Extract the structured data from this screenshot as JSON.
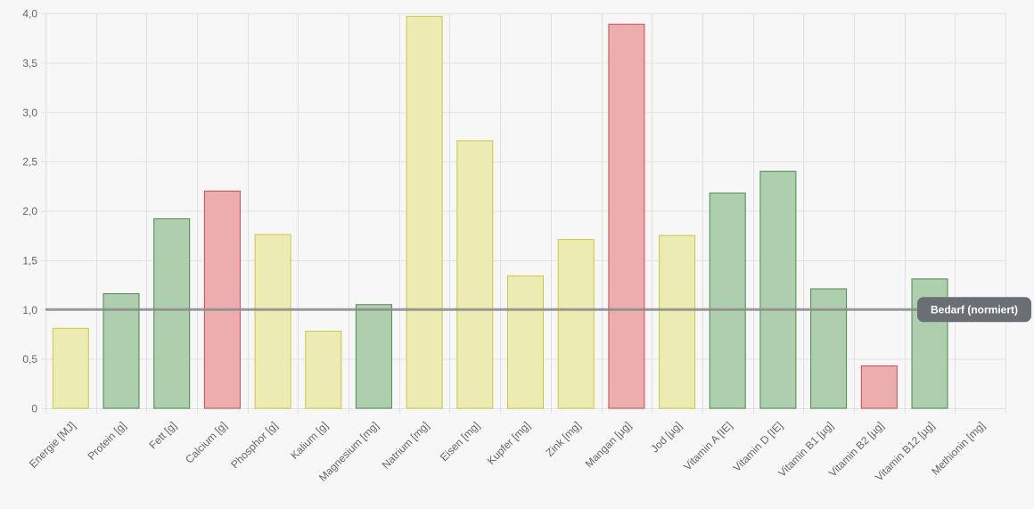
{
  "chart_data": {
    "type": "bar",
    "categories": [
      "Energie [MJ]",
      "Protein [g]",
      "Fett [g]",
      "Calcium [g]",
      "Phosphor [g]",
      "Kalium [g]",
      "Magnesium [mg]",
      "Natrium [mg]",
      "Eisen [mg]",
      "Kupfer [mg]",
      "Zink [mg]",
      "Mangan [µg]",
      "Jod [µg]",
      "Vitamin A [IE]",
      "Vitamin D [IE]",
      "Vitamin B1 [µg]",
      "Vitamin B2 [µg]",
      "Vitamin B12 [µg]",
      "Methionin [mg]"
    ],
    "values": [
      0.81,
      1.16,
      1.92,
      2.2,
      1.76,
      0.78,
      1.05,
      3.97,
      2.71,
      1.34,
      1.71,
      3.89,
      1.75,
      2.18,
      2.4,
      1.21,
      0.43,
      1.31,
      null
    ],
    "status": [
      "yellow",
      "green",
      "green",
      "red",
      "yellow",
      "yellow",
      "green",
      "yellow",
      "yellow",
      "yellow",
      "yellow",
      "red",
      "yellow",
      "green",
      "green",
      "green",
      "red",
      "green",
      "none"
    ],
    "y_ticks": [
      "0",
      "0,5",
      "1,0",
      "1,5",
      "2,0",
      "2,5",
      "3,0",
      "3,5",
      "4,0"
    ],
    "ylim": [
      0,
      4
    ],
    "grid": true,
    "reference_line": {
      "value": 1.0,
      "label": "Bedarf (normiert)"
    },
    "title": "",
    "xlabel": "",
    "ylabel": ""
  },
  "colors": {
    "yellow": {
      "fill": "#ecebb3",
      "stroke": "#cbc83c"
    },
    "green": {
      "fill": "#aecfae",
      "stroke": "#4a8a4a"
    },
    "red": {
      "fill": "#ebadad",
      "stroke": "#cc4c4c"
    },
    "reference_line": "#8a8a8a",
    "reference_label_bg": "#6a6f75",
    "grid": "#e2e2e2"
  }
}
